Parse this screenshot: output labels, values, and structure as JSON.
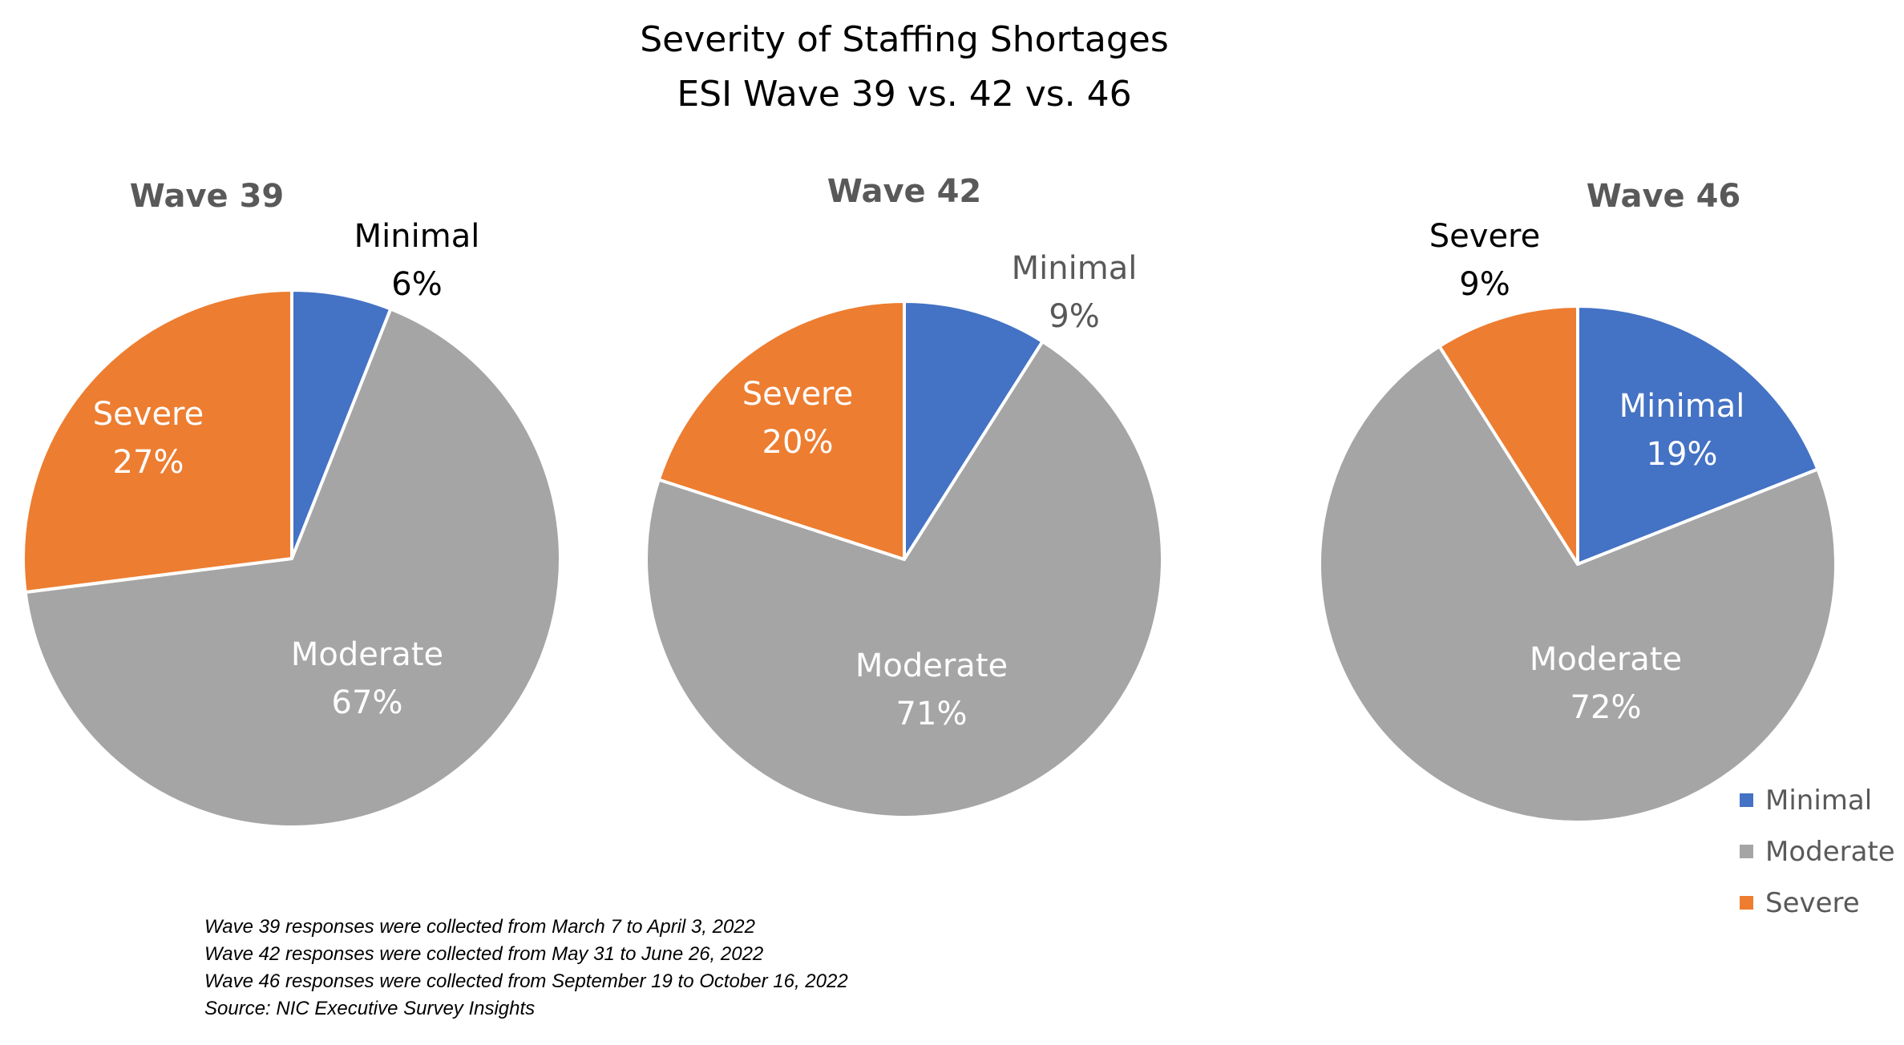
{
  "chart_data": {
    "type": "pie",
    "title": "Severity of Staffing Shortages",
    "subtitle": "ESI Wave 39 vs. 42 vs. 46",
    "categories": [
      "Minimal",
      "Moderate",
      "Severe"
    ],
    "colors": {
      "Minimal": "#4472C4",
      "Moderate": "#A5A5A5",
      "Severe": "#ED7D31"
    },
    "pies": [
      {
        "name": "Wave 39",
        "values": [
          6,
          67,
          27
        ],
        "labels": [
          "6%",
          "67%",
          "27%"
        ]
      },
      {
        "name": "Wave 42",
        "values": [
          9,
          71,
          20
        ],
        "labels": [
          "9%",
          "71%",
          "20%"
        ]
      },
      {
        "name": "Wave 46",
        "values": [
          19,
          72,
          9
        ],
        "labels": [
          "19%",
          "72%",
          "9%"
        ]
      }
    ],
    "legend": [
      "Minimal",
      "Moderate",
      "Severe"
    ],
    "legend_position": "bottom-right"
  },
  "notes": [
    "Wave 39 responses were collected from March 7 to April 3, 2022",
    "Wave 42 responses were collected from May 31 to June 26, 2022",
    "Wave 46 responses were collected from September 19 to October 16, 2022",
    "Source: NIC Executive Survey Insights"
  ]
}
